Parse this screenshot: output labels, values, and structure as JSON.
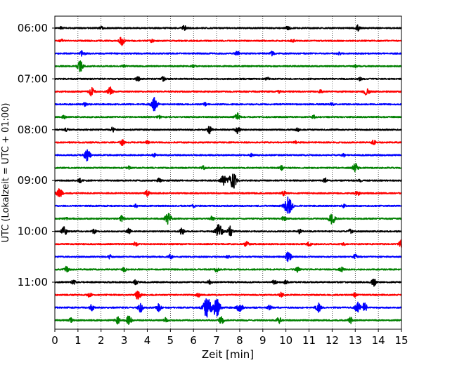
{
  "chart_data": {
    "type": "line",
    "subtype": "seismogram-helicorder",
    "xlabel": "Zeit  [min]",
    "ylabel": "UTC (Lokalzeit = UTC + 01:00)",
    "xlim": [
      0,
      15
    ],
    "x_ticks": [
      0,
      1,
      2,
      3,
      4,
      5,
      6,
      7,
      8,
      9,
      10,
      11,
      12,
      13,
      14,
      15
    ],
    "x_tick_labels": [
      "0",
      "1",
      "2",
      "3",
      "4",
      "5",
      "6",
      "7",
      "8",
      "9",
      "10",
      "11",
      "12",
      "13",
      "14",
      "15"
    ],
    "y_tick_labels": [
      "06:00",
      "07:00",
      "08:00",
      "09:00",
      "10:00",
      "11:00"
    ],
    "y_tick_rows": [
      0,
      4,
      8,
      12,
      16,
      20
    ],
    "grid": "vertical dotted",
    "colors": [
      "#000000",
      "#ff0000",
      "#0000ff",
      "#008000"
    ],
    "series": [
      {
        "row": 0,
        "color": "#000000",
        "bursts": [
          [
            5.6,
            4
          ],
          [
            10.1,
            3
          ],
          [
            13.1,
            4
          ],
          [
            0.3,
            2
          ],
          [
            2.0,
            2
          ]
        ]
      },
      {
        "row": 1,
        "color": "#ff0000",
        "bursts": [
          [
            2.9,
            6
          ],
          [
            0.3,
            2
          ],
          [
            4.2,
            2
          ],
          [
            10.3,
            2
          ]
        ]
      },
      {
        "row": 2,
        "color": "#0000ff",
        "bursts": [
          [
            1.2,
            4
          ],
          [
            7.9,
            3
          ],
          [
            9.4,
            3
          ],
          [
            12.3,
            2
          ]
        ]
      },
      {
        "row": 3,
        "color": "#008000",
        "bursts": [
          [
            1.1,
            7
          ],
          [
            3.0,
            2
          ],
          [
            6.0,
            2
          ],
          [
            13.0,
            2
          ]
        ]
      },
      {
        "row": 4,
        "color": "#000000",
        "bursts": [
          [
            3.6,
            3
          ],
          [
            4.7,
            3
          ],
          [
            9.2,
            2
          ],
          [
            13.2,
            2
          ]
        ]
      },
      {
        "row": 5,
        "color": "#ff0000",
        "bursts": [
          [
            1.6,
            6
          ],
          [
            2.4,
            6
          ],
          [
            13.5,
            6
          ],
          [
            9.7,
            2
          ],
          [
            11.5,
            2
          ]
        ]
      },
      {
        "row": 6,
        "color": "#0000ff",
        "bursts": [
          [
            4.3,
            9
          ],
          [
            1.3,
            2
          ],
          [
            6.5,
            2
          ],
          [
            12.0,
            2
          ]
        ]
      },
      {
        "row": 7,
        "color": "#008000",
        "bursts": [
          [
            7.9,
            5
          ],
          [
            0.4,
            2
          ],
          [
            4.5,
            2
          ],
          [
            11.2,
            2
          ]
        ]
      },
      {
        "row": 8,
        "color": "#000000",
        "bursts": [
          [
            7.9,
            5
          ],
          [
            6.7,
            5
          ],
          [
            2.5,
            3
          ],
          [
            10.5,
            2
          ],
          [
            0.5,
            2
          ]
        ]
      },
      {
        "row": 9,
        "color": "#ff0000",
        "bursts": [
          [
            2.9,
            4
          ],
          [
            4.0,
            2
          ],
          [
            10.4,
            2
          ],
          [
            13.8,
            3
          ]
        ]
      },
      {
        "row": 10,
        "color": "#0000ff",
        "bursts": [
          [
            1.4,
            8
          ],
          [
            4.3,
            2
          ],
          [
            8.5,
            2
          ],
          [
            12.5,
            2
          ]
        ]
      },
      {
        "row": 11,
        "color": "#008000",
        "bursts": [
          [
            13.0,
            6
          ],
          [
            6.4,
            3
          ],
          [
            9.8,
            3
          ],
          [
            3.2,
            2
          ]
        ]
      },
      {
        "row": 12,
        "color": "#000000",
        "bursts": [
          [
            7.7,
            12
          ],
          [
            7.3,
            7
          ],
          [
            1.1,
            3
          ],
          [
            4.5,
            3
          ],
          [
            11.7,
            3
          ],
          [
            13.2,
            2
          ]
        ]
      },
      {
        "row": 13,
        "color": "#ff0000",
        "bursts": [
          [
            0.2,
            7
          ],
          [
            4.0,
            4
          ],
          [
            9.9,
            3
          ],
          [
            13.1,
            3
          ]
        ]
      },
      {
        "row": 14,
        "color": "#0000ff",
        "bursts": [
          [
            10.1,
            12
          ],
          [
            3.5,
            2
          ],
          [
            6.0,
            2
          ],
          [
            12.5,
            2
          ]
        ]
      },
      {
        "row": 15,
        "color": "#008000",
        "bursts": [
          [
            4.9,
            8
          ],
          [
            12.0,
            8
          ],
          [
            2.9,
            4
          ],
          [
            9.9,
            3
          ],
          [
            6.8,
            3
          ],
          [
            0.5,
            2
          ]
        ]
      },
      {
        "row": 16,
        "color": "#000000",
        "bursts": [
          [
            7.1,
            10
          ],
          [
            7.6,
            7
          ],
          [
            0.4,
            6
          ],
          [
            3.2,
            4
          ],
          [
            5.5,
            4
          ],
          [
            10.6,
            3
          ],
          [
            12.8,
            3
          ],
          [
            1.7,
            3
          ]
        ]
      },
      {
        "row": 17,
        "color": "#ff0000",
        "bursts": [
          [
            8.3,
            4
          ],
          [
            15.0,
            6
          ],
          [
            3.5,
            3
          ],
          [
            11.0,
            3
          ],
          [
            12.5,
            2
          ]
        ]
      },
      {
        "row": 18,
        "color": "#0000ff",
        "bursts": [
          [
            10.1,
            7
          ],
          [
            2.4,
            3
          ],
          [
            5.0,
            3
          ],
          [
            13.0,
            3
          ],
          [
            7.5,
            2
          ]
        ]
      },
      {
        "row": 19,
        "color": "#008000",
        "bursts": [
          [
            0.5,
            4
          ],
          [
            3.0,
            3
          ],
          [
            7.0,
            3
          ],
          [
            10.5,
            3
          ],
          [
            12.4,
            3
          ]
        ]
      },
      {
        "row": 20,
        "color": "#000000",
        "bursts": [
          [
            13.8,
            5
          ],
          [
            3.5,
            3
          ],
          [
            6.7,
            3
          ],
          [
            10.0,
            3
          ],
          [
            0.8,
            3
          ],
          [
            9.5,
            3
          ]
        ]
      },
      {
        "row": 21,
        "color": "#ff0000",
        "bursts": [
          [
            3.6,
            6
          ],
          [
            1.5,
            3
          ],
          [
            6.2,
            3
          ],
          [
            9.8,
            3
          ],
          [
            13.0,
            3
          ]
        ]
      },
      {
        "row": 22,
        "color": "#0000ff",
        "bursts": [
          [
            6.6,
            14
          ],
          [
            7.0,
            12
          ],
          [
            8.0,
            7
          ],
          [
            3.7,
            6
          ],
          [
            4.5,
            5
          ],
          [
            11.4,
            6
          ],
          [
            13.1,
            7
          ],
          [
            13.4,
            6
          ],
          [
            1.6,
            4
          ],
          [
            9.3,
            3
          ]
        ]
      },
      {
        "row": 23,
        "color": "#008000",
        "bursts": [
          [
            3.2,
            6
          ],
          [
            2.7,
            5
          ],
          [
            7.2,
            5
          ],
          [
            9.7,
            4
          ],
          [
            12.8,
            4
          ],
          [
            0.7,
            3
          ],
          [
            4.8,
            3
          ]
        ]
      }
    ]
  }
}
